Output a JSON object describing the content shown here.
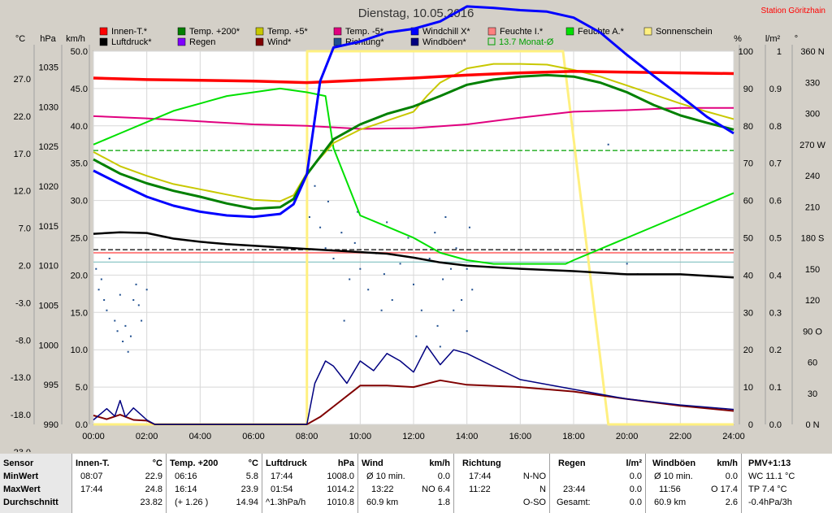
{
  "chart_data": {
    "type": "line",
    "title": "Dienstag, 10.05.2016",
    "station": "Station Göritzhain",
    "axis_units": {
      "temp": "°C",
      "pressure": "hPa",
      "wind": "km/h",
      "humidity": "%",
      "rain": "l/m²",
      "direction": "°"
    },
    "temp_ticks": [
      "27.0",
      "22.0",
      "17.0",
      "12.0",
      "7.0",
      "2.0",
      "-3.0",
      "-8.0",
      "-13.0",
      "-18.0",
      "-23.0"
    ],
    "pressure_ticks": [
      "1035",
      "1030",
      "1025",
      "1020",
      "1015",
      "1010",
      "1005",
      "1000",
      "995",
      "990"
    ],
    "wind_ticks": [
      "50.0",
      "45.0",
      "40.0",
      "35.0",
      "30.0",
      "25.0",
      "20.0",
      "15.0",
      "10.0",
      "5.0",
      "0.0"
    ],
    "humidity_ticks": [
      "100",
      "90",
      "80",
      "70",
      "60",
      "50",
      "40",
      "30",
      "20",
      "10",
      "0"
    ],
    "rain_ticks": [
      "1",
      "0.9",
      "0.8",
      "0.7",
      "0.6",
      "0.5",
      "0.4",
      "0.3",
      "0.2",
      "0.1",
      "0.0"
    ],
    "direction_ticks": [
      "360 N",
      "330",
      "300",
      "270 W",
      "240",
      "210",
      "180 S",
      "150",
      "120",
      "90 O",
      "60",
      "30",
      "0 N"
    ],
    "x_ticks": [
      "00:00",
      "02:00",
      "04:00",
      "06:00",
      "08:00",
      "10:00",
      "12:00",
      "14:00",
      "16:00",
      "18:00",
      "20:00",
      "22:00",
      "24:00"
    ],
    "legend": [
      {
        "name": "Innen-T.*",
        "color": "#ff0000"
      },
      {
        "name": "Temp. +200*",
        "color": "#008000"
      },
      {
        "name": "Temp. +5*",
        "color": "#c8c800"
      },
      {
        "name": "Temp. -5*",
        "color": "#e0007f"
      },
      {
        "name": "Windchill X*",
        "color": "#0000ff"
      },
      {
        "name": "Feuchte I.*",
        "color": "#ff8080"
      },
      {
        "name": "Feuchte A.*",
        "color": "#00e000"
      },
      {
        "name": "Sonnenschein",
        "color": "#fff080"
      },
      {
        "name": "Luftdruck*",
        "color": "#000000"
      },
      {
        "name": "Regen",
        "color": "#8000ff"
      },
      {
        "name": "Wind*",
        "color": "#800000"
      },
      {
        "name": "Richtung*",
        "color": "#1f4f8f"
      },
      {
        "name": "Windböen*",
        "color": "#000080"
      },
      {
        "name": "13.7 Monat-Ø",
        "color": "#00a000"
      }
    ],
    "series": [
      {
        "name": "Innen-T.*",
        "axis": "temp",
        "x": [
          0,
          2,
          4,
          6,
          8,
          10,
          12,
          14,
          16,
          18,
          20,
          22,
          24
        ],
        "values": [
          23.4,
          23.2,
          23.1,
          23.0,
          22.8,
          23.1,
          23.4,
          23.8,
          24.1,
          24.3,
          24.2,
          24.1,
          24.0
        ]
      },
      {
        "name": "Temp. +200*",
        "axis": "temp",
        "x": [
          0,
          1,
          2,
          3,
          4,
          5,
          6,
          7,
          7.5,
          8,
          9,
          10,
          11,
          12,
          13,
          14,
          15,
          16,
          17,
          18,
          19,
          20,
          21,
          22,
          23,
          24
        ],
        "values": [
          12.5,
          10.6,
          9.3,
          8.3,
          7.5,
          6.6,
          5.9,
          6.1,
          7.2,
          10.5,
          15.2,
          17.2,
          18.6,
          19.6,
          21.0,
          22.5,
          23.2,
          23.6,
          23.8,
          23.6,
          22.8,
          21.5,
          19.8,
          18.4,
          17.4,
          16.5
        ]
      },
      {
        "name": "Temp. +5*",
        "axis": "temp",
        "x": [
          0,
          1,
          2,
          3,
          4,
          5,
          6,
          7,
          7.5,
          8,
          9,
          10,
          11,
          12,
          12.5,
          13,
          14,
          15,
          16,
          17,
          18,
          19,
          20,
          21,
          22,
          23,
          24
        ],
        "values": [
          13.5,
          11.6,
          10.3,
          9.2,
          8.5,
          7.8,
          7.1,
          6.9,
          7.7,
          10.7,
          14.7,
          16.5,
          17.7,
          18.9,
          21.0,
          22.8,
          24.7,
          25.3,
          25.3,
          25.2,
          24.5,
          23.6,
          22.4,
          21.2,
          20.0,
          18.9,
          17.9
        ]
      },
      {
        "name": "Temp. -5*",
        "axis": "temp",
        "x": [
          0,
          2,
          4,
          6,
          8,
          10,
          12,
          14,
          16,
          18,
          20,
          22,
          24
        ],
        "values": [
          18.3,
          18.0,
          17.6,
          17.2,
          17.0,
          16.6,
          16.7,
          17.2,
          18.1,
          18.9,
          19.1,
          19.4,
          19.4
        ]
      },
      {
        "name": "Windchill X*",
        "axis": "temp",
        "x": [
          0,
          1,
          2,
          3,
          4,
          5,
          6,
          7,
          7.5,
          8,
          8.5,
          9,
          10,
          11,
          12,
          13,
          14,
          15,
          16,
          17,
          18,
          19,
          20,
          21,
          22,
          23,
          24
        ],
        "values": [
          11.0,
          9.2,
          7.5,
          6.3,
          5.5,
          5.0,
          4.8,
          5.2,
          6.5,
          10.5,
          23.0,
          27.5,
          28.3,
          29.5,
          30.0,
          31.0,
          33.0,
          32.8,
          32.5,
          32.3,
          31.5,
          29.5,
          26.5,
          23.7,
          21.0,
          18.2,
          16.0
        ]
      },
      {
        "name": "Feuchte I.*",
        "axis": "humidity",
        "x": [
          0,
          24
        ],
        "values": [
          46,
          46
        ]
      },
      {
        "name": "Feuchte A.*",
        "axis": "humidity",
        "x": [
          0,
          1,
          2,
          3,
          4,
          5,
          6,
          7,
          8,
          8.7,
          9,
          10,
          11,
          12,
          13,
          14,
          15,
          16,
          17,
          17.7,
          18,
          20,
          22,
          24
        ],
        "values": [
          75,
          78,
          81,
          84,
          86,
          88,
          89,
          90,
          89,
          88,
          74,
          56,
          53,
          50,
          46,
          44,
          43,
          43,
          43,
          43,
          44,
          50,
          56,
          62
        ]
      },
      {
        "name": "Luftdruck*",
        "axis": "pressure",
        "x": [
          0,
          1,
          2,
          3,
          4,
          5,
          6,
          7,
          8,
          9,
          10,
          11,
          12,
          13,
          14,
          16,
          18,
          20,
          22,
          24
        ],
        "values": [
          1014.0,
          1014.2,
          1014.1,
          1013.4,
          1013.0,
          1012.7,
          1012.5,
          1012.3,
          1012.1,
          1011.9,
          1011.7,
          1011.5,
          1011.0,
          1010.4,
          1010.0,
          1009.6,
          1009.3,
          1008.9,
          1008.9,
          1008.5
        ]
      },
      {
        "name": "Wind*",
        "axis": "wind",
        "x": [
          0,
          0.5,
          1,
          1.5,
          2,
          2.3,
          8,
          8.5,
          9,
          10,
          11,
          12,
          13,
          14,
          16,
          18,
          20,
          22,
          24
        ],
        "values": [
          1.2,
          0.7,
          1.3,
          0.6,
          0.5,
          0,
          0,
          1.0,
          2.4,
          5.2,
          5.2,
          5.0,
          5.9,
          5.3,
          5.0,
          4.4,
          3.4,
          2.5,
          1.8
        ]
      },
      {
        "name": "Windböen*",
        "axis": "wind",
        "x": [
          0,
          0.5,
          0.8,
          1,
          1.2,
          1.5,
          2,
          2.3,
          8,
          8.3,
          8.7,
          9,
          9.5,
          10,
          10.5,
          11,
          11.5,
          12,
          12.5,
          13,
          13.5,
          14,
          16,
          18,
          20,
          22,
          24
        ],
        "values": [
          0.6,
          2.1,
          1.1,
          3.2,
          1.0,
          2.2,
          0.6,
          0,
          0,
          5.5,
          8.5,
          7.8,
          5.5,
          8.5,
          7.2,
          9.5,
          8.5,
          7.0,
          10.5,
          8.0,
          10.0,
          9.5,
          6.0,
          4.7,
          3.4,
          2.6,
          2.0
        ]
      },
      {
        "name": "Sonnenschein",
        "axis": "wind",
        "x": [
          0,
          8,
          8.01,
          17.6,
          19.3,
          19.31,
          24
        ],
        "values": [
          0,
          0,
          50,
          50,
          0,
          0,
          0
        ]
      }
    ],
    "reference_lines": [
      {
        "name": "13.7 Monat-Ø",
        "axis": "temp",
        "value": 13.7,
        "style": "dashed",
        "color": "#00a000"
      },
      {
        "name": "Luftdruck Mittel",
        "axis": "pressure",
        "value": 1012.0,
        "style": "dashed",
        "color": "#000000"
      },
      {
        "name": "Feuchte Mittel",
        "axis": "humidity",
        "value": 43.5,
        "style": "solid",
        "color": "#80c0c0"
      }
    ],
    "direction_points": [
      [
        0.1,
        150
      ],
      [
        0.2,
        130
      ],
      [
        0.3,
        140
      ],
      [
        0.4,
        120
      ],
      [
        0.5,
        110
      ],
      [
        0.6,
        160
      ],
      [
        0.8,
        100
      ],
      [
        0.9,
        90
      ],
      [
        1.0,
        125
      ],
      [
        1.1,
        80
      ],
      [
        1.2,
        95
      ],
      [
        1.3,
        70
      ],
      [
        1.4,
        85
      ],
      [
        1.5,
        120
      ],
      [
        1.6,
        135
      ],
      [
        1.7,
        115
      ],
      [
        1.8,
        100
      ],
      [
        2.0,
        130
      ],
      [
        8.1,
        200
      ],
      [
        8.3,
        230
      ],
      [
        8.5,
        190
      ],
      [
        8.7,
        170
      ],
      [
        9.0,
        160
      ],
      [
        9.3,
        185
      ],
      [
        9.6,
        140
      ],
      [
        9.8,
        175
      ],
      [
        10.0,
        150
      ],
      [
        10.3,
        130
      ],
      [
        10.6,
        165
      ],
      [
        10.9,
        145
      ],
      [
        11.2,
        120
      ],
      [
        11.5,
        155
      ],
      [
        11.8,
        180
      ],
      [
        12.0,
        135
      ],
      [
        12.3,
        110
      ],
      [
        12.6,
        160
      ],
      [
        12.9,
        95
      ],
      [
        13.1,
        140
      ],
      [
        13.4,
        150
      ],
      [
        13.6,
        170
      ],
      [
        13.8,
        120
      ],
      [
        14.0,
        150
      ],
      [
        13.2,
        200
      ],
      [
        12.8,
        185
      ],
      [
        11.0,
        195
      ],
      [
        9.9,
        205
      ],
      [
        10.8,
        110
      ],
      [
        12.1,
        85
      ],
      [
        13.0,
        75
      ],
      [
        13.5,
        110
      ],
      [
        8.8,
        215
      ],
      [
        14.2,
        130
      ],
      [
        14.0,
        90
      ],
      [
        20.0,
        155
      ],
      [
        20.4,
        145
      ],
      [
        19.3,
        270
      ],
      [
        14.1,
        190
      ],
      [
        9.4,
        100
      ]
    ]
  },
  "stats": {
    "headers": {
      "sensor": "Sensor",
      "min": "MinWert",
      "max": "MaxWert",
      "avg": "Durchschnitt"
    },
    "innen": {
      "title": "Innen-T.",
      "unit": "°C",
      "min_time": "08:07",
      "min_val": "22.9",
      "max_time": "17:44",
      "max_val": "24.8",
      "avg": "23.82"
    },
    "temp200": {
      "title": "Temp. +200",
      "unit": "°C",
      "min_time": "06:16",
      "min_val": "5.8",
      "max_time": "16:14",
      "max_val": "23.9",
      "avg_note": "(+ 1.26 )",
      "avg": "14.94"
    },
    "luft": {
      "title": "Luftdruck",
      "unit": "hPa",
      "min_time": "17:44",
      "min_val": "1008.0",
      "max_time": "01:54",
      "max_val": "1014.2",
      "avg_note": "^1.3hPa/h",
      "avg": "1010.8"
    },
    "wind": {
      "title": "Wind",
      "unit": "km/h",
      "min_time": "Ø 10 min.",
      "min_val": "0.0",
      "max_time": "13:22",
      "max_val": "NO 6.4",
      "avg_note": "60.9 km",
      "avg": "1.8"
    },
    "richtung": {
      "title": "Richtung",
      "unit": "",
      "min_time": "17:44",
      "min_val": "N-NO",
      "max_time": "11:22",
      "max_val": "N",
      "avg": "O-SO"
    },
    "regen": {
      "title": "Regen",
      "unit": "l/m²",
      "min_val": "0.0",
      "max_time": "23:44",
      "max_val": "0.0",
      "avg_note": "Gesamt:",
      "avg": "0.0"
    },
    "boeen": {
      "title": "Windböen",
      "unit": "km/h",
      "min_time": "Ø 10 min.",
      "min_val": "0.0",
      "max_time": "11:56",
      "max_val": "O 17.4",
      "avg_note": "60.9 km",
      "avg": "2.6"
    },
    "pmv": {
      "title": "PMV+1:13",
      "l1": "WC 11.1 °C",
      "l2": "TP 7.4 °C",
      "l3": "-0.4hPa/3h"
    }
  }
}
